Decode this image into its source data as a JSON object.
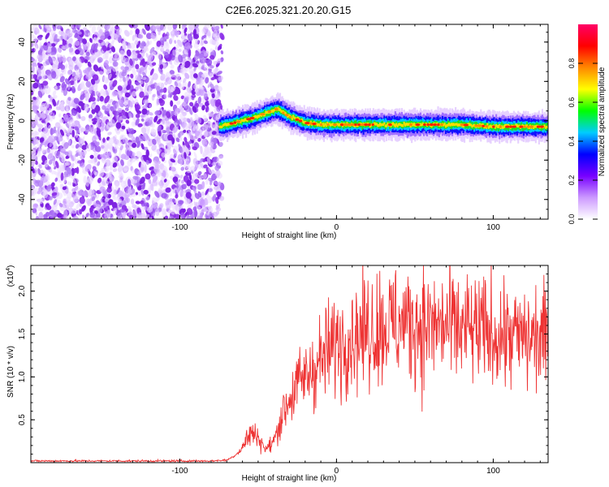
{
  "page_title": "C2E6.2025.321.20.20.G15",
  "chart_data": [
    {
      "type": "heatmap",
      "title": "C2E6.2025.321.20.20.G15",
      "xlabel": "Height of straight line (km)",
      "ylabel": "Frequency (Hz)",
      "xlim": [
        -195,
        135
      ],
      "ylim": [
        -50,
        49
      ],
      "x_ticks": [
        -100,
        0,
        100
      ],
      "x_tick_labels": [
        "-100",
        "0",
        "100"
      ],
      "y_ticks": [
        -40,
        -20,
        0,
        20,
        40
      ],
      "y_tick_labels": [
        "-40",
        "-20",
        "0",
        "20",
        "40"
      ],
      "noise_region_x": [
        -195,
        -75
      ],
      "ridge": {
        "x": [
          -75,
          -65,
          -55,
          -45,
          -38,
          -30,
          -20,
          -10,
          0,
          20,
          40,
          60,
          80,
          100,
          120,
          135
        ],
        "y": [
          -3,
          -1,
          1,
          4,
          6,
          2,
          -1,
          -2,
          -2,
          -2,
          -2,
          -2,
          -2,
          -3,
          -3,
          -3
        ]
      },
      "colorbar": {
        "label": "Normalized spectral amplitude",
        "range": [
          0,
          1
        ],
        "ticks": [
          0.0,
          0.2,
          0.4,
          0.6,
          0.8
        ],
        "tick_labels": [
          "0.0",
          "0.2",
          "0.4",
          "0.6",
          "0.8"
        ],
        "colors": [
          "#ffffff",
          "#cc99ff",
          "#7700ff",
          "#0000ff",
          "#00ccff",
          "#00ff00",
          "#ffff00",
          "#ff8800",
          "#ff0000",
          "#ff0066"
        ]
      }
    },
    {
      "type": "line",
      "title": "",
      "xlabel": "Height of straight line (km)",
      "ylabel": "SNR (10 * v/v)",
      "scale_label": "(x10",
      "scale_exp": "4",
      "scale_close": ")",
      "xlim": [
        -195,
        135
      ],
      "ylim": [
        0,
        2.3
      ],
      "x_ticks": [
        -100,
        0,
        100
      ],
      "x_tick_labels": [
        "-100",
        "0",
        "100"
      ],
      "y_ticks": [
        0.5,
        1.0,
        1.5,
        2.0
      ],
      "y_tick_labels": [
        "0.5",
        "1.0",
        "1.5",
        "2.0"
      ],
      "series": [
        {
          "name": "SNR",
          "color": "#ee3333",
          "envelope_x": [
            -195,
            -80,
            -70,
            -65,
            -60,
            -55,
            -50,
            -45,
            -40,
            -35,
            -30,
            -25,
            -20,
            -15,
            -10,
            -5,
            0,
            5,
            10,
            20,
            30,
            40,
            50,
            60,
            70,
            80,
            90,
            100,
            110,
            120,
            130,
            135
          ],
          "envelope_y": [
            0.02,
            0.02,
            0.03,
            0.08,
            0.18,
            0.35,
            0.3,
            0.15,
            0.25,
            0.55,
            0.75,
            0.9,
            1.0,
            1.1,
            1.2,
            1.3,
            1.4,
            1.45,
            1.5,
            1.55,
            1.6,
            1.62,
            1.62,
            1.6,
            1.58,
            1.55,
            1.52,
            1.5,
            1.48,
            1.45,
            1.45,
            1.45
          ]
        }
      ]
    }
  ]
}
